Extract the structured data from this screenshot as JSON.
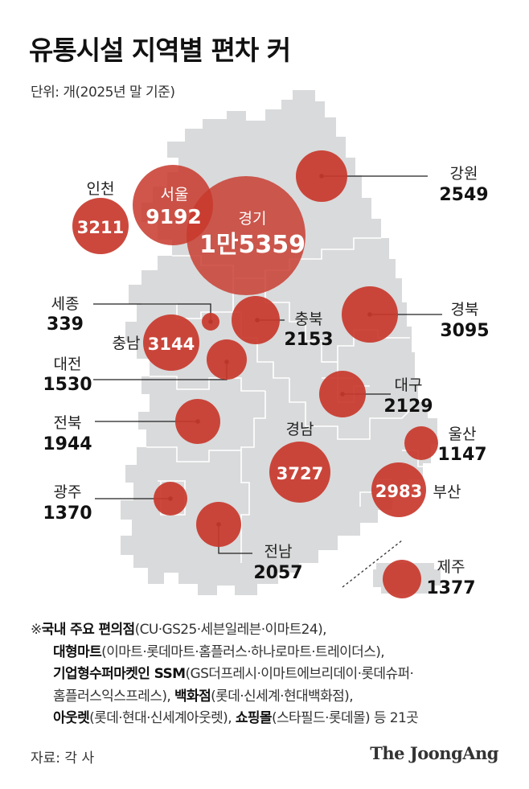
{
  "title": "유통시설 지역별 편차 커",
  "unit": "단위: 개(2025년 말 기준)",
  "colors": {
    "bubble": "#c8382c",
    "map": "#d9dadb",
    "border": "#ffffff"
  },
  "regions": [
    {
      "id": "seoul",
      "name": "서울",
      "value": "9192"
    },
    {
      "id": "gyeonggi",
      "name": "경기",
      "value": "1만5359"
    },
    {
      "id": "incheon",
      "name": "인천",
      "value": "3211"
    },
    {
      "id": "gangwon",
      "name": "강원",
      "value": "2549"
    },
    {
      "id": "sejong",
      "name": "세종",
      "value": "339"
    },
    {
      "id": "chungbuk",
      "name": "충북",
      "value": "2153"
    },
    {
      "id": "gyeongbuk",
      "name": "경북",
      "value": "3095"
    },
    {
      "id": "chungnam",
      "name": "충남",
      "value": "3144"
    },
    {
      "id": "daejeon",
      "name": "대전",
      "value": "1530"
    },
    {
      "id": "daegu",
      "name": "대구",
      "value": "2129"
    },
    {
      "id": "jeonbuk",
      "name": "전북",
      "value": "1944"
    },
    {
      "id": "ulsan",
      "name": "울산",
      "value": "1147"
    },
    {
      "id": "gyeongnam",
      "name": "경남",
      "value": "3727"
    },
    {
      "id": "busan",
      "name": "부산",
      "value": "2983"
    },
    {
      "id": "gwangju",
      "name": "광주",
      "value": "1370"
    },
    {
      "id": "jeonnam",
      "name": "전남",
      "value": "2057"
    },
    {
      "id": "jeju",
      "name": "제주",
      "value": "1377"
    }
  ],
  "notes": {
    "mark": "※",
    "l1_b": "국내 주요 편의점",
    "l1": "(CU·GS25·세븐일레븐·이마트24),",
    "l2_b": "대형마트",
    "l2": "(이마트·롯데마트·홈플러스·하나로마트·트레이더스),",
    "l3_b": "기업형수퍼마켓인 SSM",
    "l3": "(GS더프레시·이마트에브리데이·롯데슈퍼·",
    "l4": "홈플러스익스프레스), ",
    "l4_b": "백화점",
    "l4_c": "(롯데·신세계·현대백화점),",
    "l5_b": "아웃렛",
    "l5": "(롯데·현대·신세계아웃렛), ",
    "l5_b2": "쇼핑몰",
    "l5_c": "(스타필드·롯데몰) 등 21곳"
  },
  "source": "자료: 각 사",
  "brand": "The JoongAng"
}
